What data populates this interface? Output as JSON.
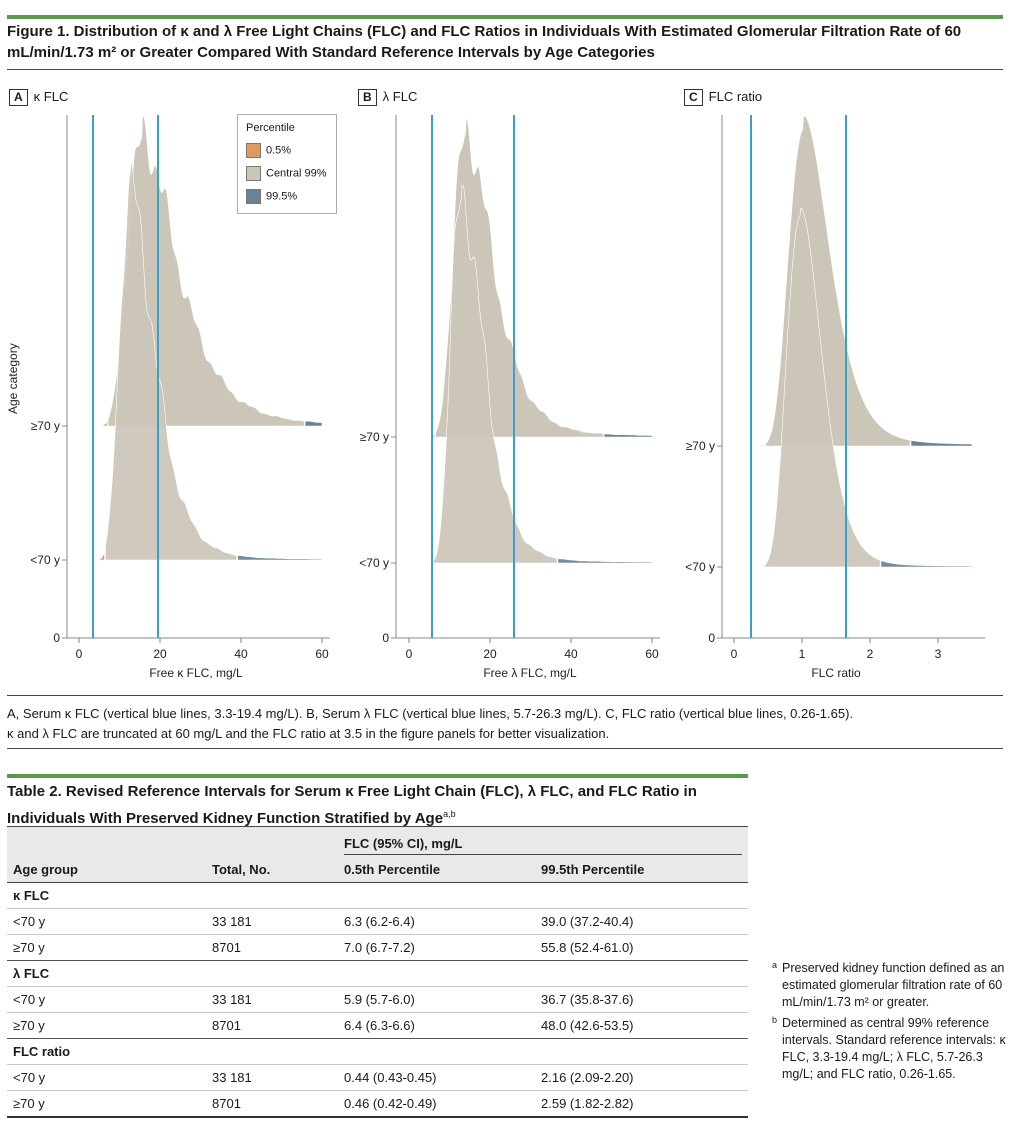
{
  "figure": {
    "title": "Figure 1. Distribution of κ and λ Free Light Chains (FLC) and FLC Ratios in Individuals With Estimated Glomerular Filtration Rate of 60 mL/min/1.73 m² or Greater Compared With Standard Reference Intervals by Age Categories",
    "ylabel": "Age category",
    "legend": {
      "title": "Percentile",
      "items": [
        {
          "label": "0.5%",
          "color": "#e09a5c"
        },
        {
          "label": "Central 99%",
          "color": "#ccc6b8"
        },
        {
          "label": "99.5%",
          "color": "#6a8294"
        }
      ]
    },
    "panels": [
      {
        "letter": "A",
        "name": "κ FLC",
        "xlabel": "Free κ FLC, mg/L",
        "ticks": [
          "0",
          "20",
          "40",
          "60"
        ],
        "categories": [
          "≥70 y",
          "<70 y"
        ],
        "zero": "0"
      },
      {
        "letter": "B",
        "name": "λ FLC",
        "xlabel": "Free λ FLC, mg/L",
        "ticks": [
          "0",
          "20",
          "40",
          "60"
        ],
        "categories": [
          "≥70 y",
          "<70 y"
        ],
        "zero": "0"
      },
      {
        "letter": "C",
        "name": "FLC ratio",
        "xlabel": "FLC ratio",
        "ticks": [
          "0",
          "1",
          "2",
          "3"
        ],
        "categories": [
          "≥70 y",
          "<70 y"
        ],
        "zero": "0"
      }
    ],
    "caption_line1": "A, Serum κ FLC (vertical blue lines, 3.3-19.4 mg/L). B, Serum λ FLC (vertical blue lines, 5.7-26.3 mg/L). C, FLC ratio (vertical blue lines, 0.26-1.65).",
    "caption_line2": "κ and λ FLC are truncated at 60 mg/L and the FLC ratio at 3.5 in the figure panels for better visualization.",
    "line_color": "#3a9fd0"
  },
  "chart_data": [
    {
      "type": "area",
      "title": "κ FLC",
      "xlabel": "Free κ FLC, mg/L",
      "ylabel": "Age category",
      "xlim": [
        0,
        60
      ],
      "reference_lines": [
        3.3,
        19.4
      ],
      "percentile_cutoffs": {
        "<70 y": [
          6.3,
          39.0
        ],
        "≥70 y": [
          7.0,
          55.8
        ]
      },
      "categories": [
        "<70 y",
        "≥70 y"
      ],
      "x_range": [
        3,
        60
      ]
    },
    {
      "type": "area",
      "title": "λ FLC",
      "xlabel": "Free λ FLC, mg/L",
      "ylabel": "Age category",
      "xlim": [
        0,
        60
      ],
      "reference_lines": [
        5.7,
        26.3
      ],
      "percentile_cutoffs": {
        "<70 y": [
          5.9,
          36.7
        ],
        "≥70 y": [
          6.4,
          48.0
        ]
      },
      "categories": [
        "<70 y",
        "≥70 y"
      ],
      "x_range": [
        3,
        60
      ]
    },
    {
      "type": "area",
      "title": "FLC ratio",
      "xlabel": "FLC ratio",
      "ylabel": "Age category",
      "xlim": [
        0,
        3.5
      ],
      "reference_lines": [
        0.26,
        1.65
      ],
      "percentile_cutoffs": {
        "<70 y": [
          0.44,
          2.16
        ],
        "≥70 y": [
          0.46,
          2.59
        ]
      },
      "categories": [
        "<70 y",
        "≥70 y"
      ],
      "x_range": [
        0,
        3.5
      ]
    }
  ],
  "table": {
    "title": "Table 2. Revised Reference Intervals for Serum κ Free Light Chain (FLC), λ FLC, and FLC Ratio in Individuals With Preserved Kidney Function Stratified by Age",
    "title_sup": "a,b",
    "header_group": "FLC (95% CI), mg/L",
    "columns": [
      "Age group",
      "Total, No.",
      "0.5th Percentile",
      "99.5th Percentile"
    ],
    "sections": [
      {
        "name": "κ FLC",
        "rows": [
          [
            "<70 y",
            "33 181",
            "6.3 (6.2-6.4)",
            "39.0 (37.2-40.4)"
          ],
          [
            "≥70 y",
            "8701",
            "7.0 (6.7-7.2)",
            "55.8 (52.4-61.0)"
          ]
        ]
      },
      {
        "name": "λ FLC",
        "rows": [
          [
            "<70 y",
            "33 181",
            "5.9 (5.7-6.0)",
            "36.7 (35.8-37.6)"
          ],
          [
            "≥70 y",
            "8701",
            "6.4 (6.3-6.6)",
            "48.0 (42.6-53.5)"
          ]
        ]
      },
      {
        "name": "FLC ratio",
        "rows": [
          [
            "<70 y",
            "33 181",
            "0.44 (0.43-0.45)",
            "2.16 (2.09-2.20)"
          ],
          [
            "≥70 y",
            "8701",
            "0.46 (0.42-0.49)",
            "2.59 (1.82-2.82)"
          ]
        ]
      }
    ]
  },
  "footnotes": [
    {
      "mark": "a",
      "text": "Preserved kidney function defined as an estimated glomerular filtration rate of 60 mL/min/1.73 m² or greater."
    },
    {
      "mark": "b",
      "text": "Determined as central 99% reference intervals. Standard reference intervals: κ FLC, 3.3-19.4 mg/L; λ FLC, 5.7-26.3 mg/L; and FLC ratio, 0.26-1.65."
    }
  ]
}
